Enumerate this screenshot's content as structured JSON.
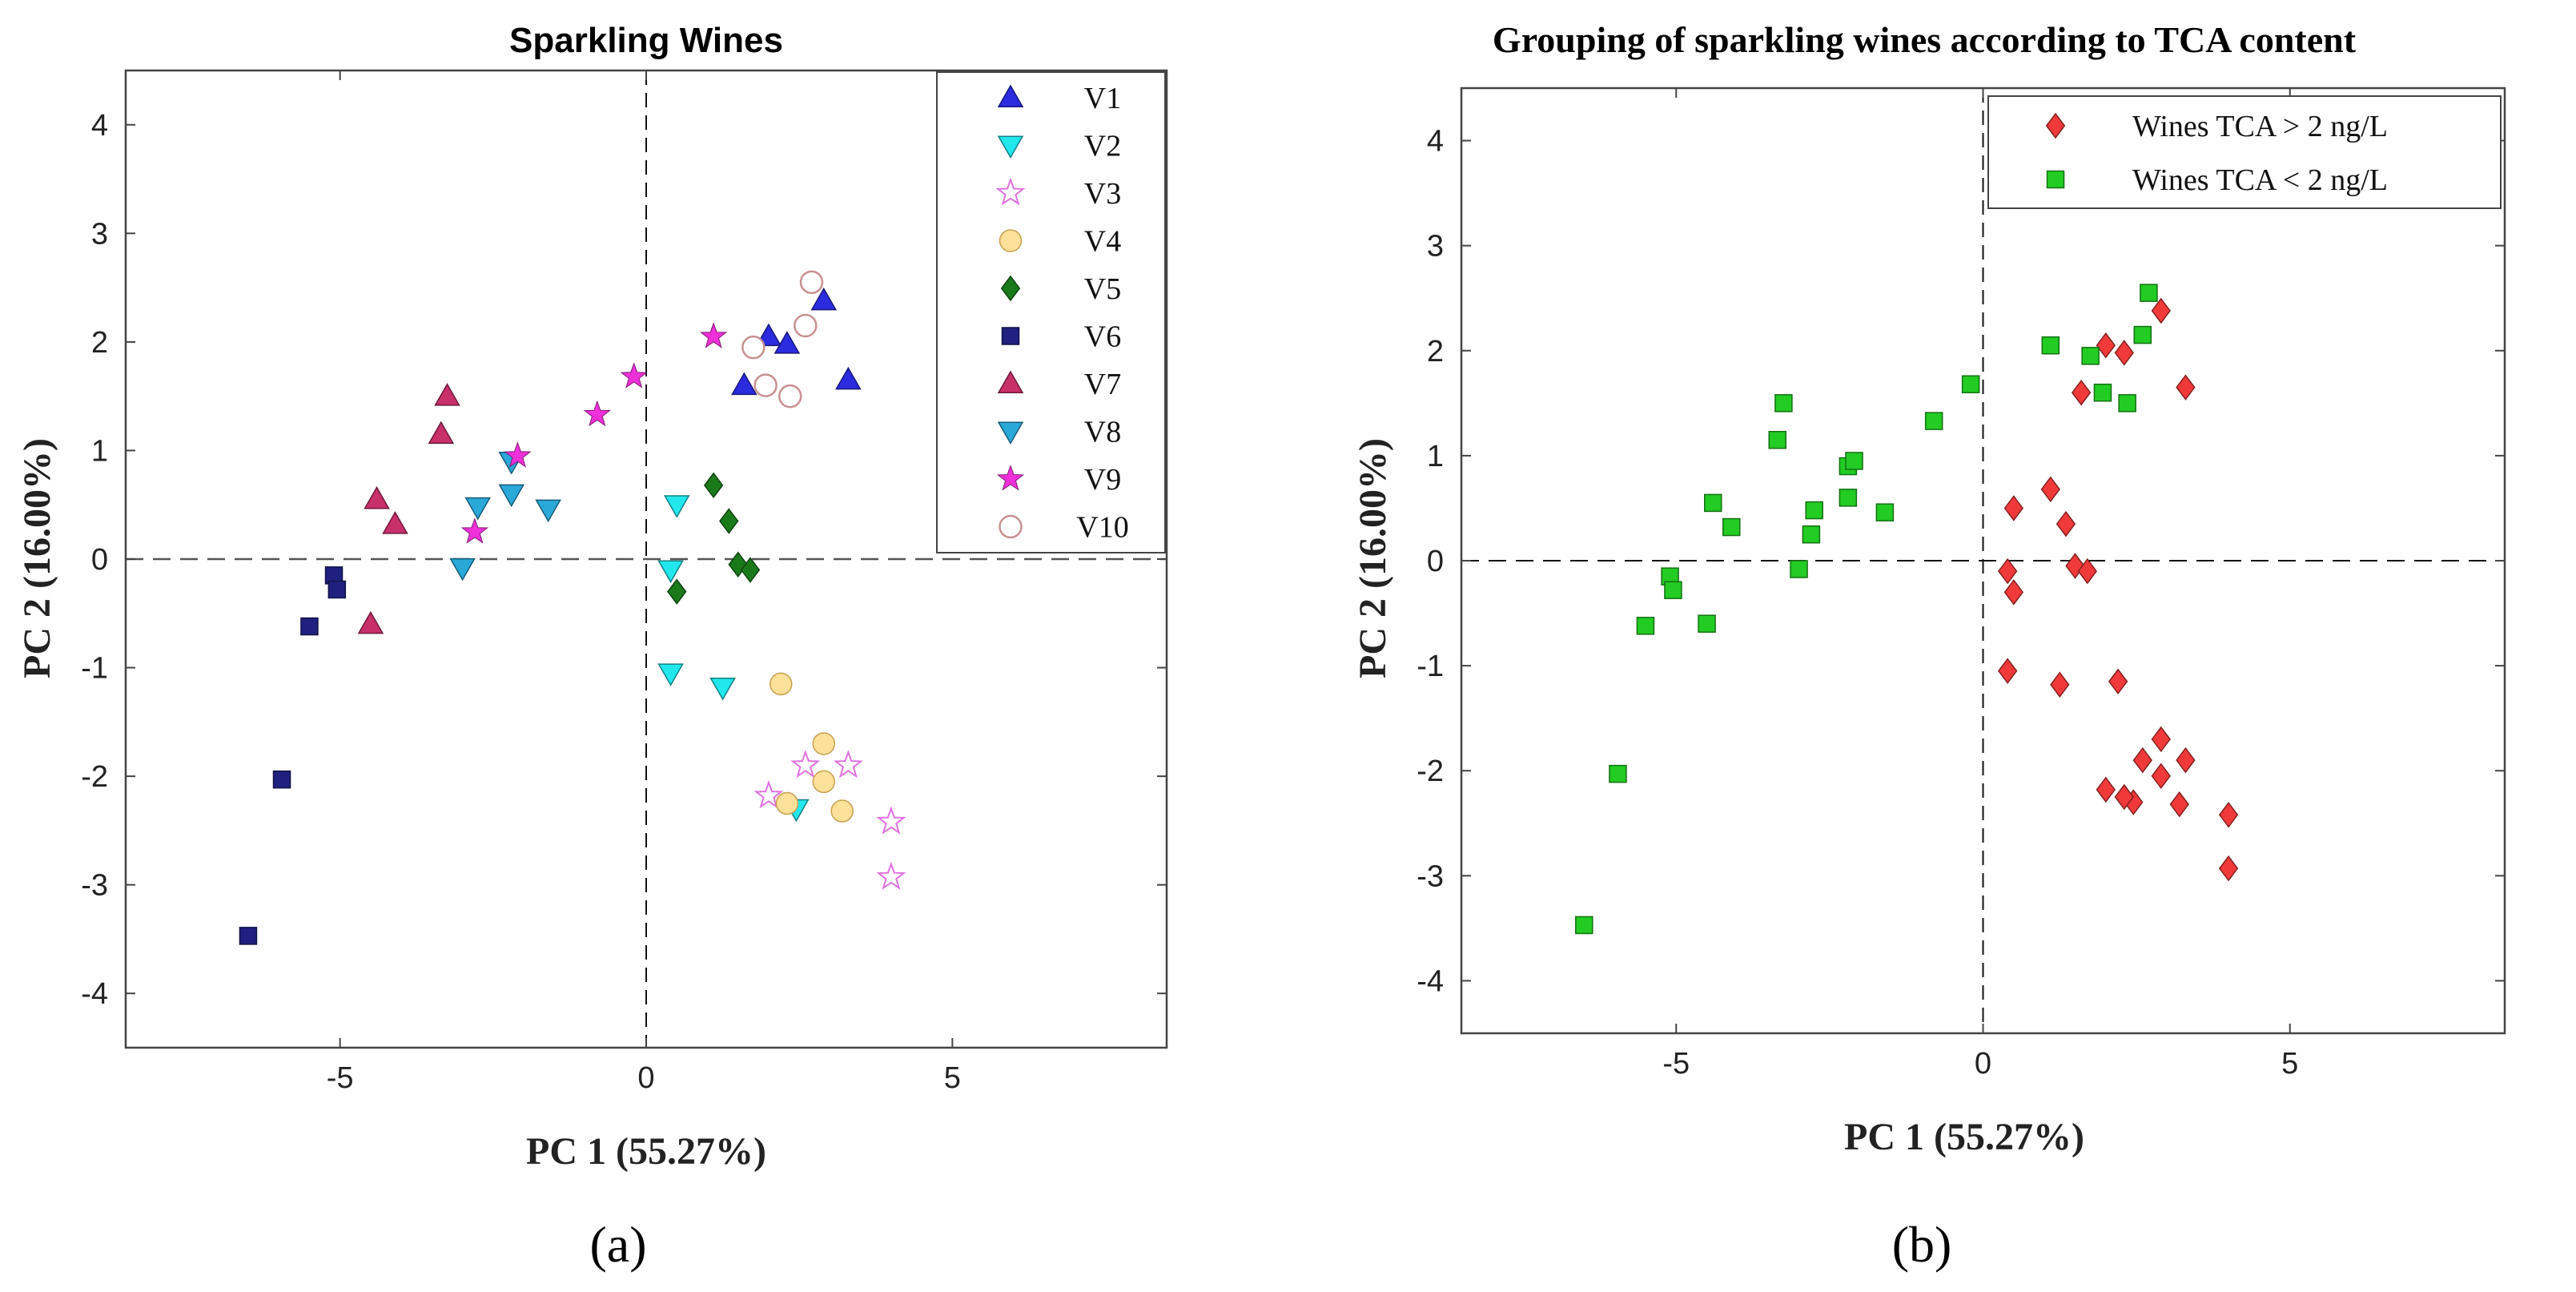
{
  "captions": {
    "a": "(a)",
    "b": "(b)"
  },
  "chart_data": [
    {
      "type": "scatter",
      "title": "Sparkling Wines",
      "xlabel": "PC 1 (55.27%)",
      "ylabel": "PC 2 (16.00%)",
      "xlim": [
        -8.5,
        8.5
      ],
      "ylim": [
        -4.5,
        4.5
      ],
      "xticks": [
        -5,
        0,
        5
      ],
      "xtick_labels": [
        "-5",
        "0",
        "5"
      ],
      "yticks": [
        4,
        3,
        2,
        1,
        0,
        -1,
        -2,
        -3,
        -4
      ],
      "ytick_labels": [
        "4",
        "3",
        "2",
        "1",
        "0",
        "-1",
        "-2",
        "-3",
        "-4"
      ],
      "reference_lines": {
        "x": 0,
        "y": 0,
        "style": "dashed"
      },
      "legend_position": "top-right",
      "series": [
        {
          "name": "V1",
          "marker": "triangle-up",
          "color": "#2b2bdf",
          "points": [
            [
              1.6,
              1.6
            ],
            [
              2.0,
              2.05
            ],
            [
              2.3,
              1.98
            ],
            [
              2.9,
              2.38
            ],
            [
              3.3,
              1.65
            ]
          ]
        },
        {
          "name": "V2",
          "marker": "triangle-down",
          "color": "#22e8ee",
          "points": [
            [
              0.5,
              0.5
            ],
            [
              0.4,
              -0.1
            ],
            [
              0.4,
              -1.05
            ],
            [
              1.25,
              -1.18
            ],
            [
              2.45,
              -2.3
            ]
          ]
        },
        {
          "name": "V3",
          "marker": "star-open",
          "color": "#e070e0",
          "points": [
            [
              2.0,
              -2.18
            ],
            [
              2.6,
              -1.9
            ],
            [
              3.3,
              -1.9
            ],
            [
              4.0,
              -2.42
            ],
            [
              4.0,
              -2.93
            ]
          ]
        },
        {
          "name": "V4",
          "marker": "circle",
          "color": "#fde19a",
          "points": [
            [
              2.2,
              -1.15
            ],
            [
              2.9,
              -1.7
            ],
            [
              2.9,
              -2.05
            ],
            [
              3.2,
              -2.32
            ],
            [
              2.3,
              -2.25
            ]
          ]
        },
        {
          "name": "V5",
          "marker": "diamond",
          "color": "#1a7a1a",
          "points": [
            [
              1.1,
              0.68
            ],
            [
              1.35,
              0.35
            ],
            [
              1.5,
              -0.05
            ],
            [
              1.7,
              -0.1
            ],
            [
              0.5,
              -0.3
            ]
          ]
        },
        {
          "name": "V6",
          "marker": "square",
          "color": "#202080",
          "points": [
            [
              -5.1,
              -0.15
            ],
            [
              -5.05,
              -0.28
            ],
            [
              -5.5,
              -0.62
            ],
            [
              -5.95,
              -2.03
            ],
            [
              -6.5,
              -3.47
            ]
          ]
        },
        {
          "name": "V7",
          "marker": "triangle-up",
          "color": "#c8306a",
          "points": [
            [
              -3.25,
              1.5
            ],
            [
              -3.35,
              1.15
            ],
            [
              -4.4,
              0.55
            ],
            [
              -4.1,
              0.32
            ],
            [
              -4.5,
              -0.6
            ]
          ]
        },
        {
          "name": "V8",
          "marker": "triangle-down",
          "color": "#2aa8d8",
          "points": [
            [
              -2.2,
              0.6
            ],
            [
              -2.75,
              0.48
            ],
            [
              -1.6,
              0.46
            ],
            [
              -3.0,
              -0.08
            ],
            [
              -2.2,
              0.9
            ]
          ]
        },
        {
          "name": "V9",
          "marker": "star",
          "color": "#ee30d8",
          "points": [
            [
              1.1,
              2.05
            ],
            [
              -0.2,
              1.68
            ],
            [
              -0.8,
              1.33
            ],
            [
              -2.1,
              0.95
            ],
            [
              -2.8,
              0.25
            ]
          ]
        },
        {
          "name": "V10",
          "marker": "circle-open",
          "color": "#c89090",
          "points": [
            [
              2.7,
              2.55
            ],
            [
              2.6,
              2.15
            ],
            [
              1.75,
              1.95
            ],
            [
              1.95,
              1.6
            ],
            [
              2.35,
              1.5
            ]
          ]
        }
      ]
    },
    {
      "type": "scatter",
      "title": "Grouping of sparkling wines according to TCA content",
      "xlabel": "PC 1 (55.27%)",
      "ylabel": "PC 2 (16.00%)",
      "xlim": [
        -8.5,
        8.5
      ],
      "ylim": [
        -4.5,
        4.5
      ],
      "xticks": [
        -5,
        0,
        5
      ],
      "xtick_labels": [
        "-5",
        "0",
        "5"
      ],
      "yticks": [
        4,
        3,
        2,
        1,
        0,
        -1,
        -2,
        -3,
        -4
      ],
      "ytick_labels": [
        "4",
        "3",
        "2",
        "1",
        "0",
        "-1",
        "-2",
        "-3",
        "-4"
      ],
      "reference_lines": {
        "x": 0,
        "y": 0,
        "style": "dashed"
      },
      "legend_position": "top-right",
      "series": [
        {
          "name": "Wines TCA > 2 ng/L",
          "marker": "diamond",
          "color": "#f03a3a",
          "points": [
            [
              1.6,
              1.6
            ],
            [
              2.0,
              2.05
            ],
            [
              2.3,
              1.98
            ],
            [
              2.9,
              2.38
            ],
            [
              3.3,
              1.65
            ],
            [
              0.5,
              0.5
            ],
            [
              0.4,
              -0.1
            ],
            [
              0.4,
              -1.05
            ],
            [
              1.25,
              -1.18
            ],
            [
              2.45,
              -2.3
            ],
            [
              2.0,
              -2.18
            ],
            [
              2.6,
              -1.9
            ],
            [
              3.3,
              -1.9
            ],
            [
              4.0,
              -2.42
            ],
            [
              4.0,
              -2.93
            ],
            [
              2.2,
              -1.15
            ],
            [
              2.9,
              -1.7
            ],
            [
              2.9,
              -2.05
            ],
            [
              3.2,
              -2.32
            ],
            [
              2.3,
              -2.25
            ],
            [
              1.1,
              0.68
            ],
            [
              1.35,
              0.35
            ],
            [
              1.5,
              -0.05
            ],
            [
              1.7,
              -0.1
            ],
            [
              0.5,
              -0.3
            ]
          ]
        },
        {
          "name": "Wines TCA < 2 ng/L",
          "marker": "square",
          "color": "#22cc22",
          "points": [
            [
              -5.1,
              -0.15
            ],
            [
              -5.05,
              -0.28
            ],
            [
              -5.5,
              -0.62
            ],
            [
              -5.95,
              -2.03
            ],
            [
              -6.5,
              -3.47
            ],
            [
              -3.25,
              1.5
            ],
            [
              -3.35,
              1.15
            ],
            [
              -4.4,
              0.55
            ],
            [
              -4.1,
              0.32
            ],
            [
              -4.5,
              -0.6
            ],
            [
              -2.2,
              0.6
            ],
            [
              -2.75,
              0.48
            ],
            [
              -1.6,
              0.46
            ],
            [
              -3.0,
              -0.08
            ],
            [
              -2.2,
              0.9
            ],
            [
              1.1,
              2.05
            ],
            [
              -0.2,
              1.68
            ],
            [
              -0.8,
              1.33
            ],
            [
              -2.1,
              0.95
            ],
            [
              -2.8,
              0.25
            ],
            [
              2.7,
              2.55
            ],
            [
              2.6,
              2.15
            ],
            [
              1.75,
              1.95
            ],
            [
              1.95,
              1.6
            ],
            [
              2.35,
              1.5
            ]
          ]
        }
      ]
    }
  ]
}
